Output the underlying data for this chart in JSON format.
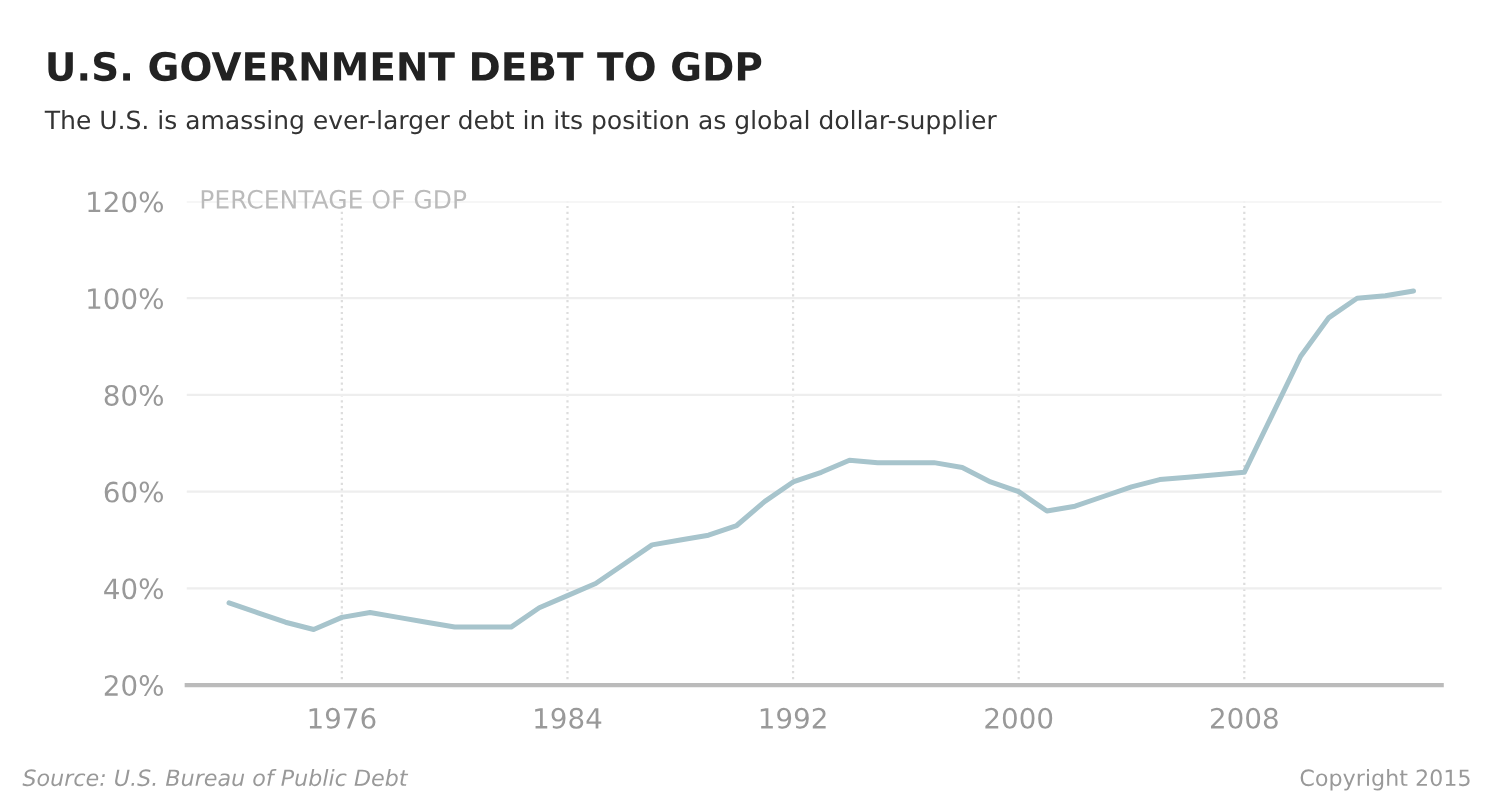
{
  "chart_data": {
    "type": "line",
    "title": "U.S. GOVERNMENT DEBT TO GDP",
    "subtitle": "The U.S. is amassing ever-larger debt in its position as global dollar-supplier",
    "ylabel": "PERCENTAGE OF GDP",
    "x": [
      1972,
      1973,
      1974,
      1975,
      1976,
      1977,
      1978,
      1979,
      1980,
      1981,
      1982,
      1983,
      1984,
      1985,
      1986,
      1987,
      1988,
      1989,
      1990,
      1991,
      1992,
      1993,
      1994,
      1995,
      1996,
      1997,
      1998,
      1999,
      2000,
      2001,
      2002,
      2003,
      2004,
      2005,
      2006,
      2007,
      2008,
      2009,
      2010,
      2011,
      2012,
      2013,
      2014
    ],
    "series": [
      {
        "color": "#a7c4cc",
        "values": [
          37,
          35,
          33,
          31.5,
          34,
          35,
          34,
          33,
          32,
          32,
          32,
          36,
          38.5,
          41,
          45,
          49,
          50,
          51,
          53,
          58,
          62,
          64,
          66.5,
          66,
          66,
          66,
          65,
          62,
          60,
          56,
          57,
          59,
          61,
          62.5,
          63,
          63.5,
          64,
          76,
          88,
          96,
          100,
          100.5,
          101.5
        ]
      }
    ],
    "xlim": [
      1970.5,
      2015
    ],
    "xticks": [
      1976,
      1984,
      1992,
      2000,
      2008
    ],
    "ylim": [
      20,
      120
    ],
    "yticks": [
      {
        "value": 20,
        "label": "20%"
      },
      {
        "value": 40,
        "label": "40%"
      },
      {
        "value": 60,
        "label": "60%"
      },
      {
        "value": 80,
        "label": "80%"
      },
      {
        "value": 100,
        "label": "100%"
      },
      {
        "value": 120,
        "label": "120%"
      }
    ],
    "grid": true,
    "marker": "none",
    "line_style": "solid",
    "annotations": [
      "Source: U.S. Bureau of Public Debt",
      "Copyright 2015"
    ]
  }
}
